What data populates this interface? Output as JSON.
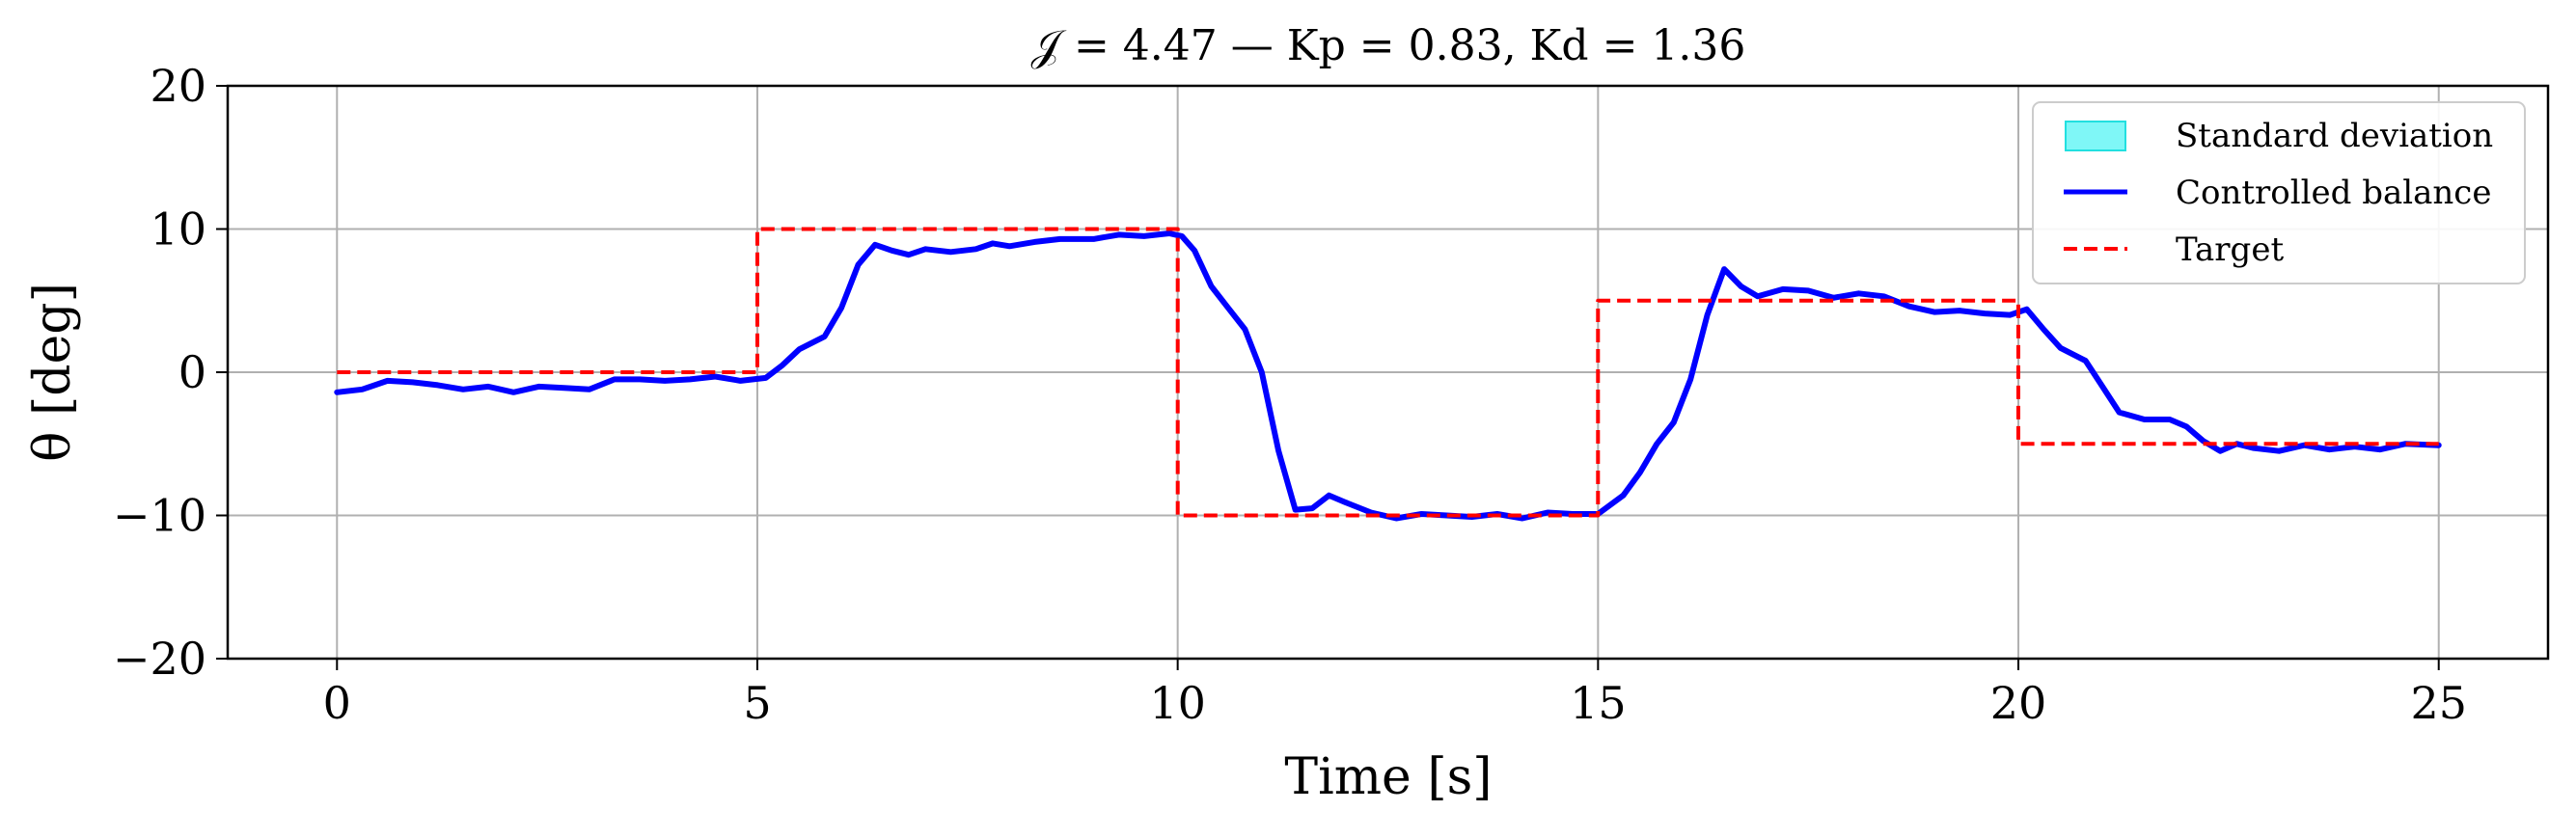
{
  "chart_data": {
    "type": "line",
    "title": "𝒥 = 4.47 — Kp = 0.83, Kd = 1.36",
    "xlabel": "Time [s]",
    "ylabel": "θ [deg]",
    "xlim": [
      -1.3,
      26.3
    ],
    "ylim": [
      -20,
      20
    ],
    "xticks": [
      0,
      5,
      10,
      15,
      20,
      25
    ],
    "xtick_labels": [
      "0",
      "5",
      "10",
      "15",
      "20",
      "25"
    ],
    "yticks": [
      -20,
      -10,
      0,
      10,
      20
    ],
    "ytick_labels": [
      "−20",
      "−10",
      "0",
      "10",
      "20"
    ],
    "grid": true,
    "legend_position": "top-right",
    "legend": [
      "Standard deviation",
      "Controlled balance",
      "Target"
    ],
    "colors": {
      "std": "#7ff7f7",
      "std_edge": "#22e0e0",
      "controlled": "#0000ff",
      "target": "#ff0000",
      "grid": "#b0b0b0"
    },
    "series": [
      {
        "name": "Controlled balance",
        "style": "solid",
        "points": [
          [
            0,
            -1.4
          ],
          [
            0.3,
            -1.2
          ],
          [
            0.6,
            -0.6
          ],
          [
            0.9,
            -0.7
          ],
          [
            1.2,
            -0.9
          ],
          [
            1.5,
            -1.2
          ],
          [
            1.8,
            -1.0
          ],
          [
            2.1,
            -1.4
          ],
          [
            2.4,
            -1.0
          ],
          [
            2.7,
            -1.1
          ],
          [
            3.0,
            -1.2
          ],
          [
            3.3,
            -0.5
          ],
          [
            3.6,
            -0.5
          ],
          [
            3.9,
            -0.6
          ],
          [
            4.2,
            -0.5
          ],
          [
            4.5,
            -0.3
          ],
          [
            4.8,
            -0.6
          ],
          [
            5.1,
            -0.4
          ],
          [
            5.3,
            0.5
          ],
          [
            5.5,
            1.6
          ],
          [
            5.8,
            2.5
          ],
          [
            6.0,
            4.5
          ],
          [
            6.2,
            7.5
          ],
          [
            6.4,
            8.9
          ],
          [
            6.6,
            8.5
          ],
          [
            6.8,
            8.2
          ],
          [
            7.0,
            8.6
          ],
          [
            7.3,
            8.4
          ],
          [
            7.6,
            8.6
          ],
          [
            7.8,
            9.0
          ],
          [
            8.0,
            8.8
          ],
          [
            8.3,
            9.1
          ],
          [
            8.6,
            9.3
          ],
          [
            9.0,
            9.3
          ],
          [
            9.3,
            9.6
          ],
          [
            9.6,
            9.5
          ],
          [
            9.9,
            9.7
          ],
          [
            10.05,
            9.5
          ],
          [
            10.2,
            8.5
          ],
          [
            10.4,
            6.0
          ],
          [
            10.6,
            4.5
          ],
          [
            10.8,
            3.0
          ],
          [
            11.0,
            0.0
          ],
          [
            11.2,
            -5.5
          ],
          [
            11.4,
            -9.6
          ],
          [
            11.6,
            -9.5
          ],
          [
            11.8,
            -8.6
          ],
          [
            12.0,
            -9.1
          ],
          [
            12.3,
            -9.8
          ],
          [
            12.6,
            -10.2
          ],
          [
            12.9,
            -9.9
          ],
          [
            13.2,
            -10.0
          ],
          [
            13.5,
            -10.1
          ],
          [
            13.8,
            -9.9
          ],
          [
            14.1,
            -10.2
          ],
          [
            14.4,
            -9.8
          ],
          [
            14.7,
            -9.9
          ],
          [
            15.0,
            -9.9
          ],
          [
            15.3,
            -8.6
          ],
          [
            15.5,
            -7.0
          ],
          [
            15.7,
            -5.0
          ],
          [
            15.9,
            -3.5
          ],
          [
            16.1,
            -0.5
          ],
          [
            16.3,
            4.0
          ],
          [
            16.5,
            7.2
          ],
          [
            16.7,
            6.0
          ],
          [
            16.9,
            5.3
          ],
          [
            17.2,
            5.8
          ],
          [
            17.5,
            5.7
          ],
          [
            17.8,
            5.2
          ],
          [
            18.1,
            5.5
          ],
          [
            18.4,
            5.3
          ],
          [
            18.7,
            4.6
          ],
          [
            19.0,
            4.2
          ],
          [
            19.3,
            4.3
          ],
          [
            19.6,
            4.1
          ],
          [
            19.9,
            4.0
          ],
          [
            20.1,
            4.4
          ],
          [
            20.3,
            3.0
          ],
          [
            20.5,
            1.7
          ],
          [
            20.8,
            0.8
          ],
          [
            21.0,
            -1.0
          ],
          [
            21.2,
            -2.8
          ],
          [
            21.5,
            -3.3
          ],
          [
            21.8,
            -3.3
          ],
          [
            22.0,
            -3.8
          ],
          [
            22.2,
            -4.8
          ],
          [
            22.4,
            -5.5
          ],
          [
            22.6,
            -5.0
          ],
          [
            22.8,
            -5.3
          ],
          [
            23.1,
            -5.5
          ],
          [
            23.4,
            -5.1
          ],
          [
            23.7,
            -5.4
          ],
          [
            24.0,
            -5.2
          ],
          [
            24.3,
            -5.4
          ],
          [
            24.6,
            -5.0
          ],
          [
            25.0,
            -5.1
          ]
        ]
      },
      {
        "name": "Target",
        "style": "dashed",
        "points": [
          [
            0,
            0
          ],
          [
            5,
            0
          ],
          [
            5,
            10
          ],
          [
            10,
            10
          ],
          [
            10,
            -10
          ],
          [
            15,
            -10
          ],
          [
            15,
            5
          ],
          [
            20,
            5
          ],
          [
            20,
            -5
          ],
          [
            25,
            -5
          ]
        ]
      }
    ]
  }
}
